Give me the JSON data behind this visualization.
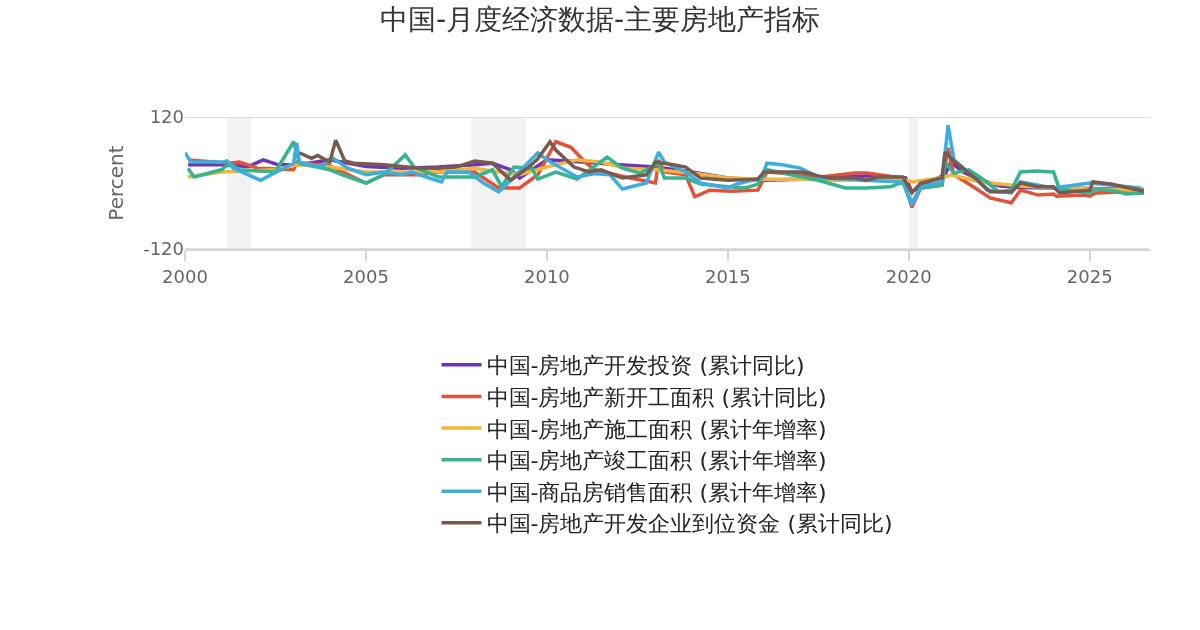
{
  "chart_data": {
    "type": "line",
    "title": "中国-月度经济数据-主要房地产指标",
    "ylabel": "Percent",
    "xlim": [
      "2000-01",
      "2026-09"
    ],
    "xticks": [
      "2000",
      "2005",
      "2010",
      "2015",
      "2020",
      "2025"
    ],
    "ylim": [
      -120,
      120
    ],
    "yticks": [
      -120,
      120
    ],
    "grid": "y",
    "legend": "bottom",
    "marker": "none",
    "line_style": "solid",
    "bands": [
      {
        "axis": "x",
        "from": "2001-03",
        "to": "2001-11",
        "color": "#f2f2f2"
      },
      {
        "axis": "x",
        "from": "2007-12",
        "to": "2009-06",
        "color": "#f2f2f2"
      },
      {
        "axis": "x",
        "from": "2020-01",
        "to": "2020-04",
        "color": "#f2f2f2"
      }
    ],
    "series": [
      {
        "name": "中国-房地产开发投资 (累计同比)",
        "color": "#6c35b8",
        "x": [
          "2000-02",
          "2001-01",
          "2001-10",
          "2002-03",
          "2002-08",
          "2003-03",
          "2004-01",
          "2005-01",
          "2006-01",
          "2007-01",
          "2008-01",
          "2008-07",
          "2009-01",
          "2009-04",
          "2010-01",
          "2011-01",
          "2012-01",
          "2013-01",
          "2014-01",
          "2015-01",
          "2016-01",
          "2017-01",
          "2018-01",
          "2019-01",
          "2019-12",
          "2020-02",
          "2020-07",
          "2021-01",
          "2021-03",
          "2021-07",
          "2022-01",
          "2022-07",
          "2023-01",
          "2024-01",
          "2025-01",
          "2026-07"
        ],
        "values": [
          33,
          33,
          30,
          42,
          33,
          33,
          42,
          30,
          27,
          29,
          33,
          36,
          24,
          9,
          42,
          38,
          33,
          29,
          20,
          9,
          5,
          7,
          11,
          13,
          9,
          -16,
          0,
          15,
          38,
          20,
          5,
          -5,
          -8,
          -9,
          -10,
          -12
        ]
      },
      {
        "name": "中国-房地产新开工面积 (累计同比)",
        "color": "#e4513a",
        "x": [
          "2000-02",
          "2001-04",
          "2001-07",
          "2002-01",
          "2003-01",
          "2003-02",
          "2004-01",
          "2005-01",
          "2005-07",
          "2006-07",
          "2007-01",
          "2008-01",
          "2008-09",
          "2009-04",
          "2009-10",
          "2010-04",
          "2010-09",
          "2011-02",
          "2011-05",
          "2012-03",
          "2013-01",
          "2013-02",
          "2013-04",
          "2013-11",
          "2014-02",
          "2014-07",
          "2015-02",
          "2015-11",
          "2016-02",
          "2017-02",
          "2017-08",
          "2018-07",
          "2018-11",
          "2019-11",
          "2020-02",
          "2020-05",
          "2020-12",
          "2021-02",
          "2021-04",
          "2021-11",
          "2022-04",
          "2022-11",
          "2023-02",
          "2023-08",
          "2024-01",
          "2024-02",
          "2024-11",
          "2025-01",
          "2025-03",
          "2026-01",
          "2026-07"
        ],
        "values": [
          42,
          36,
          38,
          27,
          24,
          38,
          31,
          0,
          15,
          15,
          20,
          20,
          -9,
          -9,
          15,
          75,
          65,
          36,
          24,
          11,
          0,
          42,
          20,
          15,
          -25,
          -13,
          -15,
          -13,
          20,
          15,
          11,
          18,
          18,
          9,
          -44,
          -9,
          -4,
          64,
          15,
          -9,
          -27,
          -36,
          -13,
          -22,
          -20,
          -24,
          -22,
          -24,
          -18,
          -16,
          -18
        ]
      },
      {
        "name": "中国-房地产施工面积 (累计年增率)",
        "color": "#f3b63a",
        "x": [
          "2000-02",
          "2001-01",
          "2002-07",
          "2003-02",
          "2004-01",
          "2005-01",
          "2007-01",
          "2008-01",
          "2008-09",
          "2009-04",
          "2010-01",
          "2010-11",
          "2011-07",
          "2012-03",
          "2013-01",
          "2014-01",
          "2015-01",
          "2016-01",
          "2017-01",
          "2018-01",
          "2019-11",
          "2020-02",
          "2021-01",
          "2021-03",
          "2022-01",
          "2023-01",
          "2024-01",
          "2025-01",
          "2026-07"
        ],
        "values": [
          11,
          20,
          24,
          33,
          29,
          20,
          20,
          27,
          20,
          15,
          29,
          42,
          38,
          27,
          24,
          18,
          9,
          7,
          7,
          5,
          7,
          2,
          11,
          15,
          2,
          -5,
          -9,
          -11,
          -13
        ]
      },
      {
        "name": "中国-房地产竣工面积 (累计年增率)",
        "color": "#33b58f",
        "x": [
          "2000-02",
          "2000-04",
          "2001-01",
          "2001-04",
          "2001-07",
          "2002-07",
          "2003-01",
          "2003-03",
          "2004-01",
          "2004-07",
          "2005-01",
          "2005-07",
          "2006-02",
          "2006-05",
          "2007-01",
          "2008-01",
          "2008-07",
          "2008-10",
          "2009-02",
          "2009-08",
          "2009-10",
          "2010-04",
          "2010-11",
          "2011-09",
          "2012-02",
          "2012-08",
          "2013-02",
          "2013-04",
          "2013-11",
          "2014-04",
          "2015-01",
          "2015-07",
          "2015-11",
          "2016-02",
          "2016-10",
          "2017-07",
          "2018-04",
          "2018-11",
          "2019-07",
          "2019-11",
          "2020-02",
          "2020-05",
          "2020-12",
          "2021-01",
          "2021-04",
          "2021-09",
          "2022-02",
          "2022-07",
          "2022-11",
          "2023-02",
          "2023-07",
          "2024-01",
          "2024-03",
          "2025-01",
          "2025-03",
          "2025-10",
          "2026-01",
          "2026-07"
        ],
        "values": [
          27,
          11,
          24,
          36,
          24,
          20,
          75,
          36,
          24,
          11,
          0,
          15,
          51,
          29,
          11,
          11,
          24,
          -7,
          29,
          27,
          7,
          20,
          7,
          47,
          27,
          18,
          36,
          9,
          9,
          -2,
          -7,
          -9,
          -2,
          24,
          15,
          5,
          -9,
          -9,
          -7,
          2,
          -36,
          -9,
          -4,
          38,
          18,
          24,
          5,
          -16,
          -13,
          20,
          22,
          20,
          -11,
          -18,
          -11,
          -15,
          -20,
          -18
        ]
      },
      {
        "name": "中国-商品房销售面积 (累计年增率)",
        "color": "#3aaee0",
        "x": [
          "2000-01",
          "2000-03",
          "2001-01",
          "2001-03",
          "2001-05",
          "2002-02",
          "2003-01",
          "2003-02",
          "2003-03",
          "2003-10",
          "2004-02",
          "2004-07",
          "2005-01",
          "2005-07",
          "2006-01",
          "2006-04",
          "2007-02",
          "2007-04",
          "2007-11",
          "2008-04",
          "2008-09",
          "2009-01",
          "2009-10",
          "2010-01",
          "2010-11",
          "2011-05",
          "2011-10",
          "2012-02",
          "2012-10",
          "2013-02",
          "2013-04",
          "2013-11",
          "2014-04",
          "2015-01",
          "2015-04",
          "2015-12",
          "2016-02",
          "2016-07",
          "2017-01",
          "2017-08",
          "2018-10",
          "2019-11",
          "2020-02",
          "2020-05",
          "2020-12",
          "2021-02",
          "2021-04",
          "2021-11",
          "2022-03",
          "2022-11",
          "2023-02",
          "2024-01",
          "2025-01",
          "2026-06"
        ],
        "values": [
          55,
          38,
          38,
          40,
          27,
          5,
          36,
          73,
          38,
          29,
          45,
          27,
          15,
          20,
          15,
          20,
          2,
          20,
          20,
          0,
          -16,
          5,
          55,
          42,
          11,
          17,
          15,
          -11,
          0,
          56,
          38,
          20,
          0,
          -9,
          -2,
          9,
          36,
          33,
          27,
          9,
          5,
          2,
          -40,
          -7,
          2,
          105,
          42,
          9,
          -13,
          -18,
          2,
          -9,
          0,
          -9
        ]
      },
      {
        "name": "中国-房地产开发企业到位资金 (累计同比)",
        "color": "#7a5a4c",
        "x": [
          "2003-03",
          "2003-07",
          "2003-09",
          "2004-01",
          "2004-03",
          "2004-06",
          "2004-09",
          "2005-07",
          "2006-07",
          "2007-01",
          "2007-07",
          "2008-01",
          "2008-07",
          "2009-01",
          "2009-07",
          "2009-10",
          "2010-02",
          "2010-04",
          "2010-10",
          "2011-03",
          "2011-07",
          "2012-02",
          "2012-10",
          "2013-01",
          "2013-07",
          "2013-11",
          "2014-04",
          "2015-01",
          "2015-11",
          "2016-01",
          "2017-02",
          "2017-07",
          "2017-11",
          "2018-07",
          "2018-11",
          "2019-03",
          "2019-11",
          "2020-02",
          "2020-05",
          "2020-12",
          "2021-01",
          "2021-04",
          "2021-11",
          "2022-04",
          "2022-11",
          "2023-02",
          "2023-08",
          "2024-01",
          "2024-03",
          "2025-01",
          "2025-02",
          "2025-08",
          "2026-07"
        ],
        "values": [
          55,
          45,
          50,
          38,
          78,
          40,
          36,
          33,
          27,
          27,
          29,
          40,
          36,
          5,
          29,
          44,
          75,
          60,
          29,
          20,
          24,
          9,
          15,
          38,
          33,
          29,
          9,
          5,
          7,
          20,
          20,
          13,
          9,
          9,
          5,
          11,
          11,
          -18,
          0,
          9,
          56,
          40,
          9,
          -16,
          -16,
          0,
          -7,
          -7,
          -18,
          -13,
          2,
          -2,
          -15
        ]
      }
    ]
  }
}
